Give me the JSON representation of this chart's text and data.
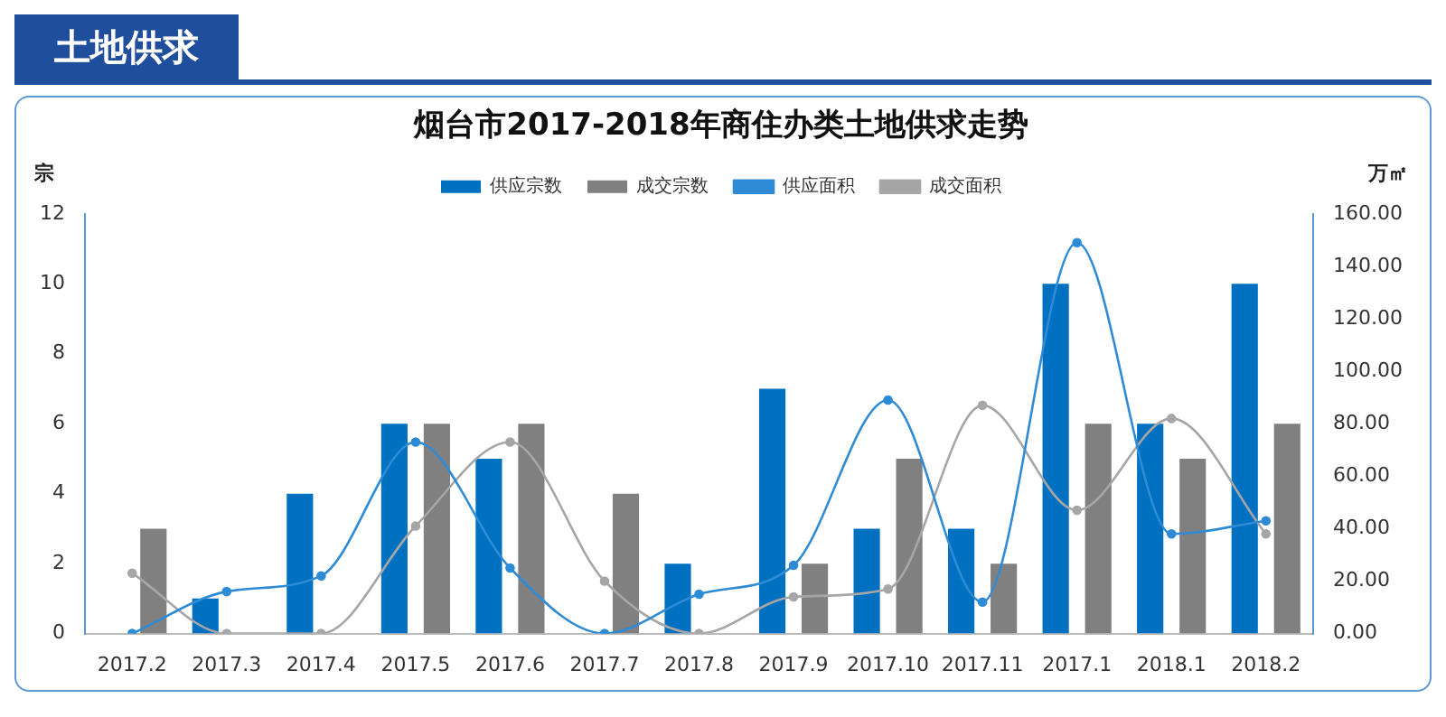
{
  "chart_data": {
    "type": "bar",
    "title": "烟台市2017-2018年商住办类土地供求走势",
    "subtitle": "土地供求",
    "ylabel": "宗",
    "y2label": "万㎡",
    "categories": [
      "2017.2",
      "2017.3",
      "2017.4",
      "2017.5",
      "2017.6",
      "2017.7",
      "2017.8",
      "2017.9",
      "2017.10",
      "2017.11",
      "2017.1",
      "2018.1",
      "2018.2"
    ],
    "series": [
      {
        "name": "供应宗数",
        "color": "#0070c0",
        "values": [
          0,
          1,
          4,
          6,
          5,
          0,
          2,
          7,
          3,
          3,
          10,
          6,
          10
        ]
      },
      {
        "name": "成交宗数",
        "color": "#808080",
        "values": [
          3,
          0,
          0,
          6,
          6,
          4,
          0,
          2,
          5,
          2,
          6,
          5,
          6
        ]
      },
      {
        "name": "供应面积",
        "type": "line",
        "axis": "y2",
        "color": "#2e8bd6",
        "values": [
          0,
          16,
          22,
          73,
          25,
          0,
          15,
          26,
          89,
          12,
          149,
          38,
          43
        ]
      },
      {
        "name": "成交面积",
        "type": "line",
        "axis": "y2",
        "color": "#a6a6a6",
        "values": [
          23,
          0,
          0,
          41,
          73,
          20,
          0,
          14,
          17,
          87,
          47,
          82,
          38
        ]
      }
    ],
    "ylim": [
      0,
      12
    ],
    "yticks": [
      0,
      2,
      4,
      6,
      8,
      10,
      12
    ],
    "y2lim": [
      0,
      160
    ],
    "y2ticks": [
      {
        "value": 0,
        "label": "0.00"
      },
      {
        "value": 20,
        "label": "20.00"
      },
      {
        "value": 40,
        "label": "40.00"
      },
      {
        "value": 60,
        "label": "60.00"
      },
      {
        "value": 80,
        "label": "80.00"
      },
      {
        "value": 100,
        "label": "100.00"
      },
      {
        "value": 120,
        "label": "120.00"
      },
      {
        "value": 140,
        "label": "140.00"
      },
      {
        "value": 160,
        "label": "160.00"
      }
    ],
    "grid": false,
    "legend": "top",
    "marker": "circle",
    "line_style": "solid"
  }
}
